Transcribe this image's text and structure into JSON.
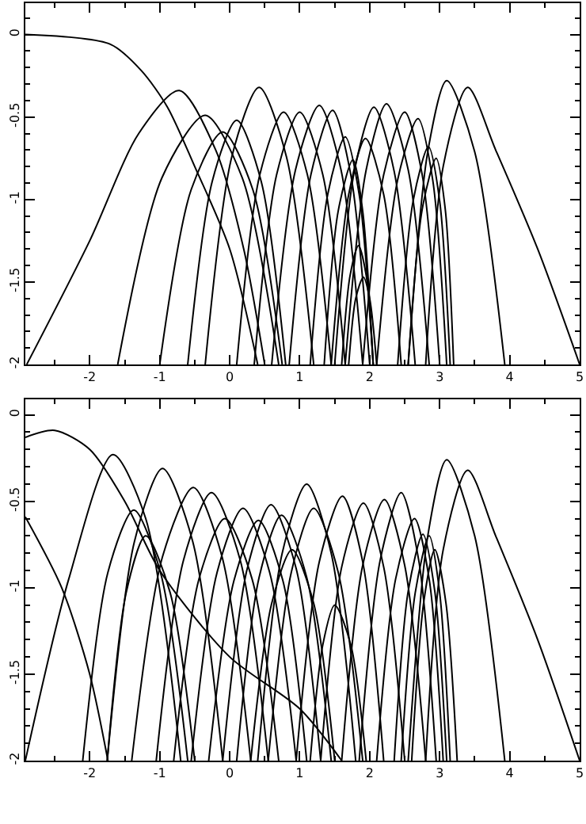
{
  "chart_data": [
    {
      "type": "line",
      "xlim": [
        -2.92,
        5
      ],
      "ylim": [
        -2,
        0.19
      ],
      "xticks": [
        -2,
        -1,
        0,
        1,
        2,
        3,
        4,
        5
      ],
      "yticks": [
        0,
        -0.5,
        -1,
        -1.5,
        -2
      ],
      "series": [
        {
          "color": "#000000",
          "x": [
            -2.92,
            -1.7,
            -1.26,
            -0.89,
            -0.5,
            0,
            0.4
          ],
          "values": [
            0,
            -0.06,
            -0.22,
            -0.44,
            -0.8,
            -1.3,
            -2
          ]
        },
        {
          "color": "#000000",
          "x": [
            -2.9,
            -2,
            -1.3,
            -0.72,
            -0.2,
            0.2,
            0.5
          ],
          "values": [
            -2,
            -1.25,
            -0.6,
            -0.34,
            -0.7,
            -1.3,
            -2
          ]
        },
        {
          "color": "#000000",
          "x": [
            -1.6,
            -0.97,
            -0.35,
            0.18,
            0.7
          ],
          "values": [
            -2,
            -0.87,
            -0.49,
            -0.87,
            -2
          ]
        },
        {
          "color": "#000000",
          "x": [
            -1.0,
            -0.55,
            -0.1,
            0.33,
            0.75
          ],
          "values": [
            -2,
            -0.94,
            -0.59,
            -0.94,
            -2
          ]
        },
        {
          "color": "#000000",
          "x": [
            -0.6,
            -0.25,
            0.1,
            0.45,
            0.8
          ],
          "values": [
            -2,
            -0.89,
            -0.52,
            -0.89,
            -2
          ]
        },
        {
          "color": "#000000",
          "x": [
            -0.35,
            0.03,
            0.42,
            0.81,
            1.2
          ],
          "values": [
            -2,
            -0.74,
            -0.32,
            -0.74,
            -2
          ]
        },
        {
          "color": "#000000",
          "x": [
            0.1,
            0.43,
            0.77,
            1.11,
            1.45
          ],
          "values": [
            -2,
            -0.85,
            -0.47,
            -0.85,
            -2
          ]
        },
        {
          "color": "#000000",
          "x": [
            0.35,
            0.67,
            1.0,
            1.33,
            1.65
          ],
          "values": [
            -2,
            -0.85,
            -0.47,
            -0.85,
            -2
          ]
        },
        {
          "color": "#000000",
          "x": [
            0.6,
            0.94,
            1.28,
            1.59,
            1.9
          ],
          "values": [
            -2,
            -0.82,
            -0.43,
            -0.82,
            -2
          ]
        },
        {
          "color": "#000000",
          "x": [
            0.85,
            1.16,
            1.47,
            1.73,
            2.0
          ],
          "values": [
            -2,
            -0.85,
            -0.46,
            -0.85,
            -2
          ]
        },
        {
          "color": "#000000",
          "x": [
            1.15,
            1.4,
            1.65,
            1.85,
            2.05
          ],
          "values": [
            -2,
            -0.97,
            -0.62,
            -0.97,
            -2
          ]
        },
        {
          "color": "#000000",
          "x": [
            1.35,
            1.55,
            1.76,
            1.9,
            2.05
          ],
          "values": [
            -2,
            -1.07,
            -0.76,
            -1.07,
            -2
          ]
        },
        {
          "color": "#000000",
          "x": [
            1.6,
            1.72,
            1.84,
            1.95,
            2.05
          ],
          "values": [
            -2,
            -1.46,
            -1.28,
            -1.46,
            -2
          ]
        },
        {
          "color": "#000000",
          "x": [
            1.7,
            1.8,
            1.91,
            2.0,
            2.1
          ],
          "values": [
            -2,
            -1.6,
            -1.47,
            -1.6,
            -2
          ]
        },
        {
          "color": "#000000",
          "x": [
            1.45,
            1.7,
            1.94,
            2.2,
            2.45
          ],
          "values": [
            -2,
            -0.97,
            -0.63,
            -0.97,
            -2
          ]
        },
        {
          "color": "#000000",
          "x": [
            1.5,
            1.78,
            2.06,
            2.35,
            2.65
          ],
          "values": [
            -2,
            -0.83,
            -0.44,
            -0.83,
            -2
          ]
        },
        {
          "color": "#000000",
          "x": [
            1.65,
            1.95,
            2.24,
            2.55,
            2.85
          ],
          "values": [
            -2,
            -0.82,
            -0.42,
            -0.82,
            -2
          ]
        },
        {
          "color": "#000000",
          "x": [
            1.9,
            2.2,
            2.5,
            2.75,
            3.0
          ],
          "values": [
            -2,
            -0.85,
            -0.47,
            -0.85,
            -2
          ]
        },
        {
          "color": "#000000",
          "x": [
            2.1,
            2.4,
            2.69,
            2.9,
            3.1
          ],
          "values": [
            -2,
            -0.88,
            -0.51,
            -0.88,
            -2
          ]
        },
        {
          "color": "#000000",
          "x": [
            2.4,
            2.62,
            2.84,
            3.0,
            3.15
          ],
          "values": [
            -2,
            -1.01,
            -0.68,
            -1.01,
            -2
          ]
        },
        {
          "color": "#000000",
          "x": [
            2.55,
            2.75,
            2.95,
            3.08,
            3.2
          ],
          "values": [
            -2,
            -1.06,
            -0.75,
            -1.06,
            -2
          ]
        },
        {
          "color": "#000000",
          "x": [
            2.55,
            2.83,
            3.1,
            3.5,
            3.93
          ],
          "values": [
            -2,
            -0.71,
            -0.28,
            -0.71,
            -2
          ]
        },
        {
          "color": "#000000",
          "x": [
            2.8,
            3.05,
            3.4,
            3.8,
            4.4,
            5.0
          ],
          "values": [
            -2,
            -0.8,
            -0.32,
            -0.7,
            -1.3,
            -2
          ]
        }
      ]
    },
    {
      "type": "line",
      "xlim": [
        -2.92,
        5
      ],
      "ylim": [
        -2,
        0.09
      ],
      "xticks": [
        -2,
        -1,
        0,
        1,
        2,
        3,
        4,
        5
      ],
      "yticks": [
        0,
        -0.5,
        -1,
        -1.5,
        -2
      ],
      "series": [
        {
          "color": "#000000",
          "x": [
            -2.92,
            -2.5,
            -2.0,
            -1.5,
            -1.0,
            0,
            1.0,
            1.6
          ],
          "values": [
            -0.13,
            -0.09,
            -0.2,
            -0.5,
            -0.9,
            -1.4,
            -1.7,
            -2
          ]
        },
        {
          "color": "#000000",
          "x": [
            -2.92,
            -2.4,
            -2.0,
            -1.74
          ],
          "values": [
            -0.59,
            -1.0,
            -1.5,
            -2
          ]
        },
        {
          "color": "#000000",
          "x": [
            -2.92,
            -2.3,
            -1.67,
            -1.2,
            -0.7
          ],
          "values": [
            -2,
            -0.95,
            -0.23,
            -0.6,
            -2
          ]
        },
        {
          "color": "#000000",
          "x": [
            -2.1,
            -1.74,
            -1.37,
            -0.99,
            -0.6
          ],
          "values": [
            -2,
            -0.91,
            -0.55,
            -0.91,
            -2
          ]
        },
        {
          "color": "#000000",
          "x": [
            -1.75,
            -1.36,
            -0.96,
            -0.53,
            -0.1
          ],
          "values": [
            -2,
            -0.73,
            -0.31,
            -0.73,
            -2
          ]
        },
        {
          "color": "#000000",
          "x": [
            -1.75,
            -1.48,
            -1.2,
            -0.85,
            -0.5
          ],
          "values": [
            -2,
            -1.03,
            -0.7,
            -1.03,
            -2
          ]
        },
        {
          "color": "#000000",
          "x": [
            -1.4,
            -0.96,
            -0.52,
            -0.11,
            0.3
          ],
          "values": [
            -2,
            -0.82,
            -0.42,
            -0.82,
            -2
          ]
        },
        {
          "color": "#000000",
          "x": [
            -1.05,
            -0.66,
            -0.26,
            0.15,
            0.55
          ],
          "values": [
            -2,
            -0.84,
            -0.45,
            -0.84,
            -2
          ]
        },
        {
          "color": "#000000",
          "x": [
            -0.8,
            -0.44,
            -0.07,
            0.32,
            0.7
          ],
          "values": [
            -2,
            -0.95,
            -0.6,
            -0.95,
            -2
          ]
        },
        {
          "color": "#000000",
          "x": [
            -0.55,
            -0.18,
            0.19,
            0.57,
            0.95
          ],
          "values": [
            -2,
            -0.91,
            -0.54,
            -0.91,
            -2
          ]
        },
        {
          "color": "#000000",
          "x": [
            -0.3,
            0.06,
            0.41,
            0.76,
            1.1
          ],
          "values": [
            -2,
            -0.96,
            -0.61,
            -0.96,
            -2
          ]
        },
        {
          "color": "#000000",
          "x": [
            -0.1,
            0.25,
            0.59,
            0.95,
            1.3
          ],
          "values": [
            -2,
            -0.89,
            -0.52,
            -0.89,
            -2
          ]
        },
        {
          "color": "#000000",
          "x": [
            0.1,
            0.42,
            0.74,
            1.1,
            1.45
          ],
          "values": [
            -2,
            -0.94,
            -0.58,
            -0.94,
            -2
          ]
        },
        {
          "color": "#000000",
          "x": [
            0.3,
            0.6,
            0.89,
            1.2,
            1.5
          ],
          "values": [
            -2,
            -1.09,
            -0.78,
            -1.09,
            -2
          ]
        },
        {
          "color": "#000000",
          "x": [
            0.4,
            0.75,
            1.1,
            1.45,
            1.8
          ],
          "values": [
            -2,
            -0.8,
            -0.4,
            -0.8,
            -2
          ]
        },
        {
          "color": "#000000",
          "x": [
            0.55,
            0.88,
            1.2,
            1.55,
            1.9
          ],
          "values": [
            -2,
            -0.91,
            -0.54,
            -0.91,
            -2
          ]
        },
        {
          "color": "#000000",
          "x": [
            1.15,
            1.33,
            1.5,
            1.73,
            1.95
          ],
          "values": [
            -2,
            -1.33,
            -1.1,
            -1.33,
            -2
          ]
        },
        {
          "color": "#000000",
          "x": [
            0.95,
            1.28,
            1.61,
            1.9,
            2.2
          ],
          "values": [
            -2,
            -0.85,
            -0.47,
            -0.85,
            -2
          ]
        },
        {
          "color": "#000000",
          "x": [
            1.3,
            1.6,
            1.91,
            2.2,
            2.5
          ],
          "values": [
            -2,
            -0.88,
            -0.51,
            -0.88,
            -2
          ]
        },
        {
          "color": "#000000",
          "x": [
            1.6,
            1.9,
            2.21,
            2.5,
            2.8
          ],
          "values": [
            -2,
            -0.87,
            -0.49,
            -0.87,
            -2
          ]
        },
        {
          "color": "#000000",
          "x": [
            1.85,
            2.15,
            2.45,
            2.7,
            2.95
          ],
          "values": [
            -2,
            -0.84,
            -0.45,
            -0.84,
            -2
          ]
        },
        {
          "color": "#000000",
          "x": [
            2.1,
            2.37,
            2.64,
            2.85,
            3.05
          ],
          "values": [
            -2,
            -0.95,
            -0.6,
            -0.95,
            -2
          ]
        },
        {
          "color": "#000000",
          "x": [
            2.35,
            2.55,
            2.76,
            2.93,
            3.1
          ],
          "values": [
            -2,
            -1.02,
            -0.69,
            -1.02,
            -2
          ]
        },
        {
          "color": "#000000",
          "x": [
            2.45,
            2.65,
            2.85,
            3.0,
            3.15
          ],
          "values": [
            -2,
            -1.03,
            -0.7,
            -1.03,
            -2
          ]
        },
        {
          "color": "#000000",
          "x": [
            2.6,
            2.77,
            2.93,
            3.09,
            3.25
          ],
          "values": [
            -2,
            -1.09,
            -0.78,
            -1.09,
            -2
          ]
        },
        {
          "color": "#000000",
          "x": [
            2.55,
            2.83,
            3.1,
            3.5,
            3.93
          ],
          "values": [
            -2,
            -0.7,
            -0.26,
            -0.7,
            -2
          ]
        },
        {
          "color": "#000000",
          "x": [
            2.8,
            3.05,
            3.4,
            3.8,
            4.4,
            5.0
          ],
          "values": [
            -2,
            -0.78,
            -0.32,
            -0.7,
            -1.3,
            -2
          ]
        }
      ]
    }
  ]
}
